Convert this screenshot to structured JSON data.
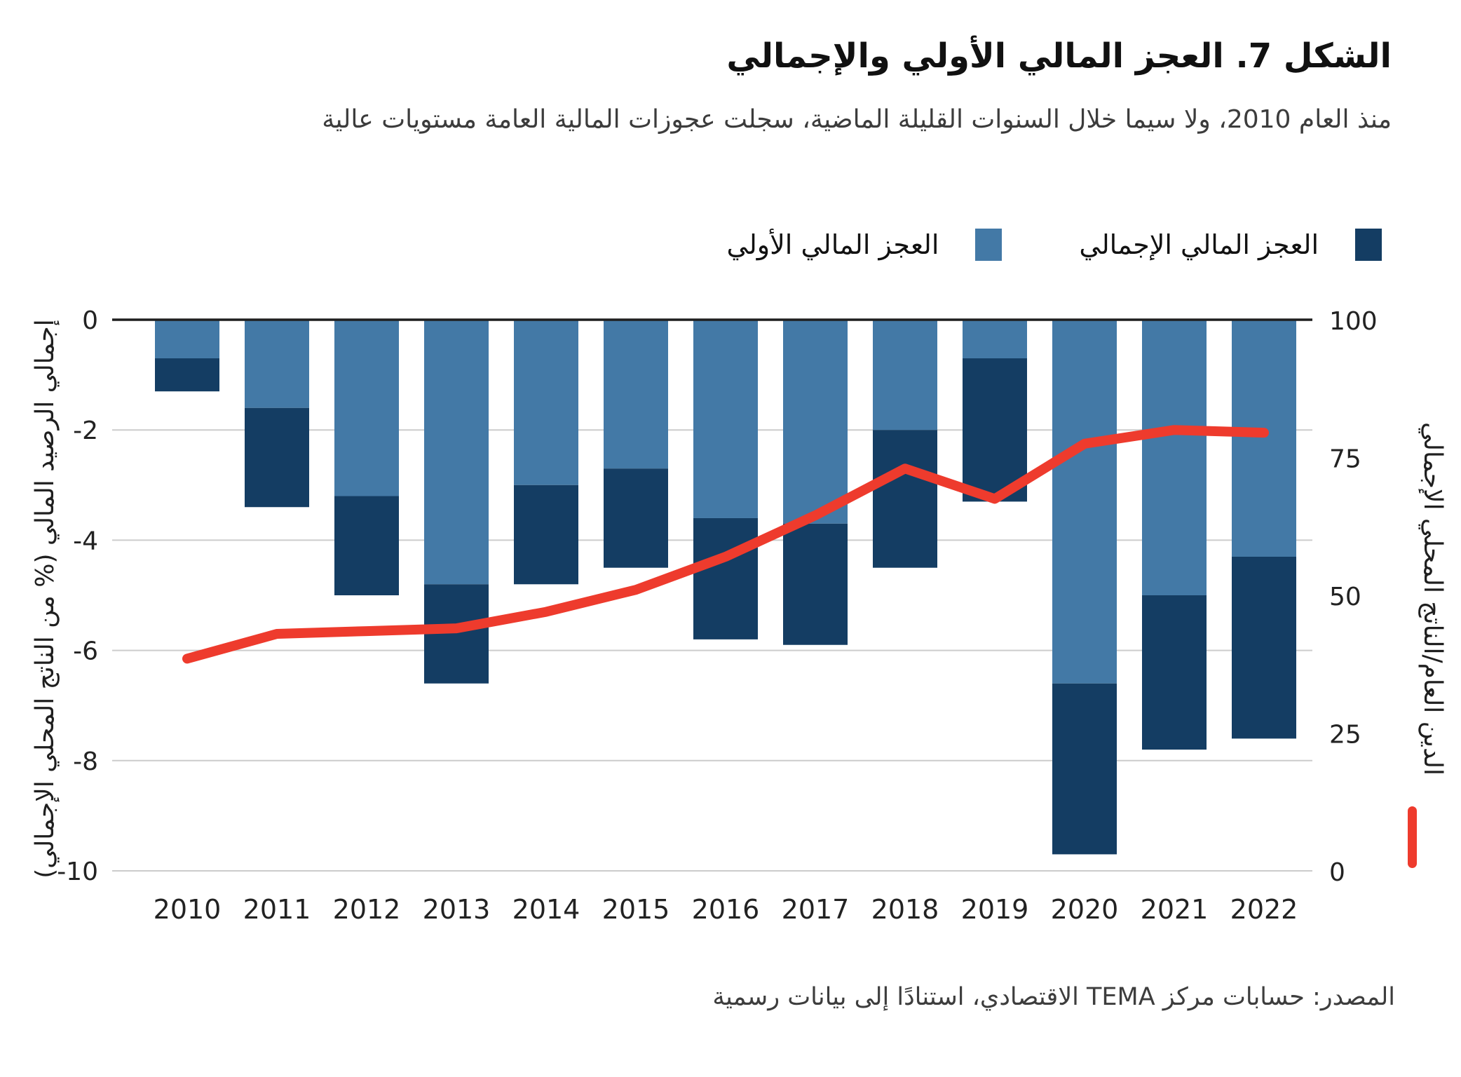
{
  "title": "الشكل 7. العجز المالي الأولي والإجمالي",
  "subtitle": "منذ العام 2010، ولا سيما خلال السنوات القليلة الماضية، سجلت عجوزات المالية العامة مستويات عالية",
  "legend": {
    "overall_label": "العجز المالي الإجمالي",
    "primary_label": "العجز المالي الأولي"
  },
  "source": "المصدر: حسابات مركز TEMA الاقتصادي، استنادًا إلى بيانات رسمية",
  "colors": {
    "primary_bar": "#4379A6",
    "overall_bar": "#143D63",
    "debt_line": "#EE3B2D",
    "grid": "#cccccc",
    "zero_line": "#1f1f1f",
    "tick_text": "#222222"
  },
  "chart_data": {
    "type": "bar+line",
    "categories": [
      "2010",
      "2011",
      "2012",
      "2013",
      "2014",
      "2015",
      "2016",
      "2017",
      "2018",
      "2019",
      "2020",
      "2021",
      "2022"
    ],
    "series": [
      {
        "name": "العجز المالي الأولي",
        "type": "bar",
        "axis": "left",
        "values": [
          -0.7,
          -1.6,
          -3.2,
          -4.8,
          -3.0,
          -2.7,
          -3.6,
          -3.7,
          -2.0,
          -0.7,
          -6.6,
          -5.0,
          -4.3
        ]
      },
      {
        "name": "العجز المالي الإجمالي",
        "type": "bar",
        "axis": "left",
        "values": [
          -1.3,
          -3.4,
          -5.0,
          -6.6,
          -4.8,
          -4.5,
          -5.8,
          -5.9,
          -4.5,
          -3.3,
          -9.7,
          -7.8,
          -7.6
        ]
      },
      {
        "name": "الدين العام/الناتج المحلي الإجمالي",
        "type": "line",
        "axis": "right",
        "values": [
          38.5,
          43,
          43.5,
          44,
          47,
          51,
          57,
          64.5,
          73,
          67.5,
          77.5,
          80,
          79.5
        ]
      }
    ],
    "left_axis": {
      "label": "إجمالي الرصيد المالي (% من الناتج المحلي الإجمالي)",
      "ticks": [
        0,
        -2,
        -4,
        -6,
        -8,
        -10
      ],
      "range": [
        0,
        -10
      ]
    },
    "right_axis": {
      "label": "الدين العام/الناتج المحلي الإجمالي",
      "ticks": [
        100,
        75,
        50,
        25,
        0
      ],
      "range": [
        0,
        100
      ]
    },
    "grid": true,
    "legend_position": "top",
    "bar_mode": "stacked-overlay"
  }
}
